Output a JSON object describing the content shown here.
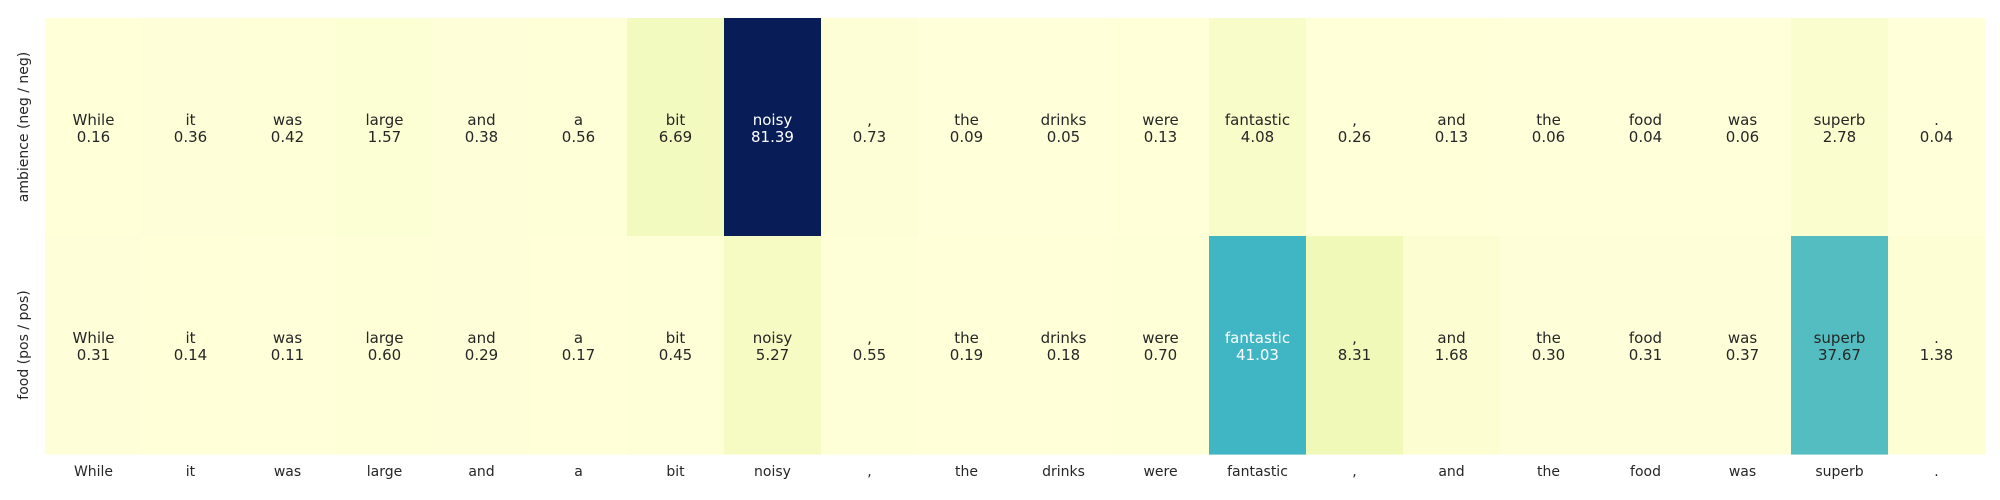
{
  "chart_data": {
    "type": "heatmap",
    "tokens": [
      "While",
      "it",
      "was",
      "large",
      "and",
      "a",
      "bit",
      "noisy",
      ",",
      "the",
      "drinks",
      "were",
      "fantastic",
      ",",
      "and",
      "the",
      "food",
      "was",
      "superb",
      "."
    ],
    "rows": [
      {
        "label": "ambience (neg / neg)",
        "values": [
          0.16,
          0.36,
          0.42,
          1.57,
          0.38,
          0.56,
          6.69,
          81.39,
          0.73,
          0.09,
          0.05,
          0.13,
          4.08,
          0.26,
          0.13,
          0.06,
          0.04,
          0.06,
          2.78,
          0.04
        ]
      },
      {
        "label": "food (pos / pos)",
        "values": [
          0.31,
          0.14,
          0.11,
          0.6,
          0.29,
          0.17,
          0.45,
          5.27,
          0.55,
          0.19,
          0.18,
          0.7,
          41.03,
          8.31,
          1.68,
          0.3,
          0.31,
          0.37,
          37.67,
          1.38
        ]
      }
    ],
    "value_range": [
      0,
      81.39
    ],
    "colormap": "YlGnBu",
    "grid": false,
    "colorbar": false
  }
}
